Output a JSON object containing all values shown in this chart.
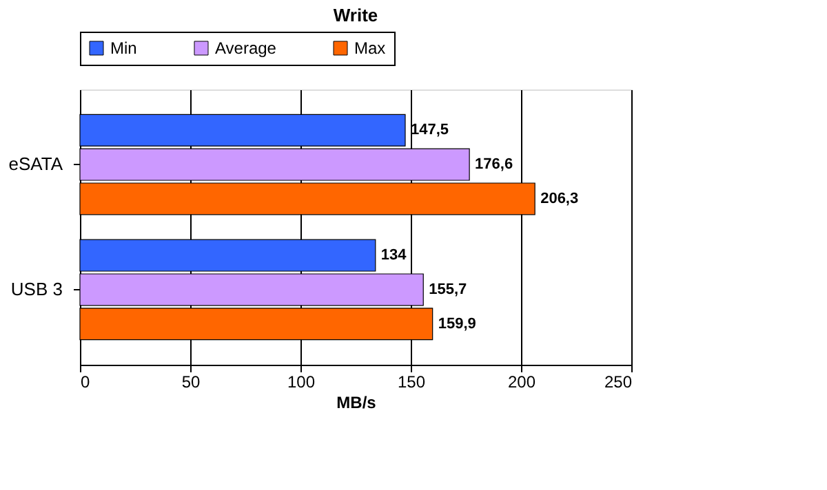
{
  "chart_data": {
    "type": "bar",
    "orientation": "horizontal",
    "title": "Write",
    "xlabel": "MB/s",
    "categories": [
      "eSATA",
      "USB 3"
    ],
    "series": [
      {
        "name": "Min",
        "color": "#3366ff",
        "values": [
          147.5,
          134
        ],
        "value_labels": [
          "147,5",
          "134"
        ]
      },
      {
        "name": "Average",
        "color": "#cc99ff",
        "values": [
          176.6,
          155.7
        ],
        "value_labels": [
          "176,6",
          "155,7"
        ]
      },
      {
        "name": "Max",
        "color": "#ff6600",
        "values": [
          206.3,
          159.9
        ],
        "value_labels": [
          "206,3",
          "159,9"
        ]
      }
    ],
    "xlim": [
      0,
      250
    ],
    "xticks": [
      0,
      50,
      100,
      150,
      200,
      250
    ],
    "grid": "x",
    "legend": "top"
  }
}
